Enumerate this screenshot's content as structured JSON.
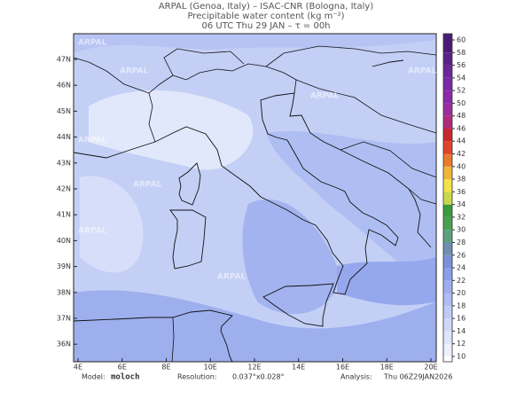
{
  "header": {
    "line1": "ARPAL (Genoa, Italy)  –  ISAC-CNR (Bologna, Italy)",
    "line2": "Precipitable water content (kg m⁻²)",
    "line3": "06 UTC Thu 29 JAN  –  τ = 00h"
  },
  "map": {
    "lat_labels": [
      "47N",
      "46N",
      "45N",
      "44N",
      "43N",
      "42N",
      "41N",
      "40N",
      "39N",
      "38N",
      "37N",
      "36N"
    ],
    "lon_labels": [
      "4E",
      "6E",
      "8E",
      "10E",
      "12E",
      "14E",
      "16E",
      "18E",
      "20E"
    ],
    "watermark": "ARPAL"
  },
  "colorbar": {
    "ticks": [
      10,
      12,
      14,
      16,
      18,
      20,
      22,
      24,
      26,
      28,
      30,
      32,
      34,
      36,
      38,
      40,
      42,
      44,
      46,
      48,
      50,
      52,
      54,
      56,
      58,
      60
    ],
    "colors": [
      "#ffffff",
      "#eef1fd",
      "#dfe5fb",
      "#cfd8f8",
      "#bfcaf5",
      "#aebcf2",
      "#9caeef",
      "#8a9fea",
      "#7b90d8",
      "#6f8fb0",
      "#5e9f80",
      "#4aa052",
      "#3b9a3a",
      "#c8d84a",
      "#f2e34a",
      "#f0b43a",
      "#e87a30",
      "#e0442a",
      "#c8282e",
      "#b02a7a",
      "#9a2c9c",
      "#8a2aa8",
      "#7a2aa8",
      "#6a2898",
      "#5a2288",
      "#4a1c78"
    ]
  },
  "footer": {
    "model_label": "Model:",
    "model": "moloch",
    "resolution_label": "Resolution:",
    "resolution": "0.037°x0.028°",
    "analysis_label": "Analysis:",
    "analysis": "Thu 06Z29JAN2026"
  }
}
